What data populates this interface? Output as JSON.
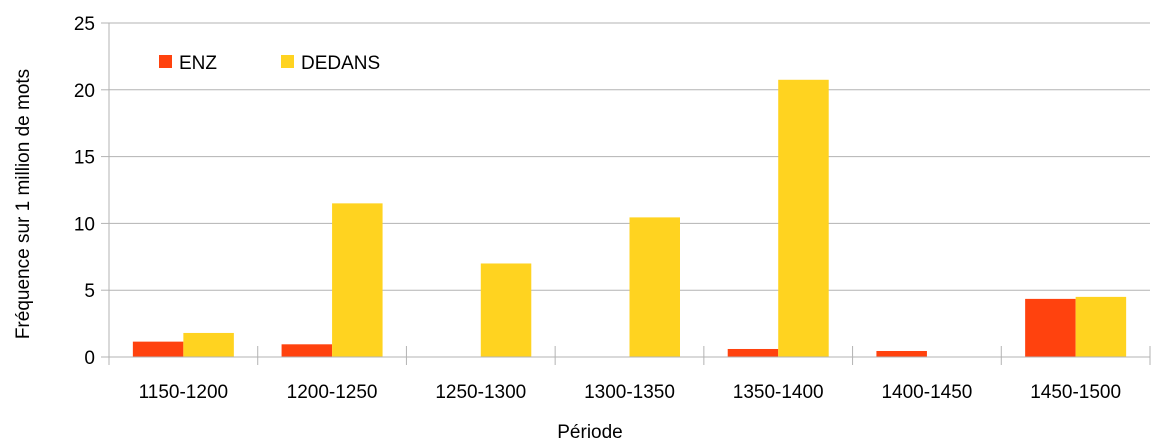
{
  "chart_data": {
    "type": "bar",
    "categories": [
      "1150-1200",
      "1200-1250",
      "1250-1300",
      "1300-1350",
      "1350-1400",
      "1400-1450",
      "1450-1500"
    ],
    "series": [
      {
        "name": "ENZ",
        "color": "#ff420e",
        "values": [
          1.15,
          0.95,
          0,
          0,
          0.6,
          0.45,
          4.35
        ]
      },
      {
        "name": "DEDANS",
        "color": "#ffd320",
        "values": [
          1.8,
          11.5,
          7.0,
          10.45,
          20.75,
          0,
          4.5
        ]
      }
    ],
    "xlabel": "Période",
    "ylabel": "Fréquence sur 1 million de mots",
    "ylim": [
      0,
      25
    ],
    "yticks": [
      "0",
      "5",
      "10",
      "15",
      "20",
      "25"
    ],
    "grid": true,
    "legend_position": "top-left"
  }
}
